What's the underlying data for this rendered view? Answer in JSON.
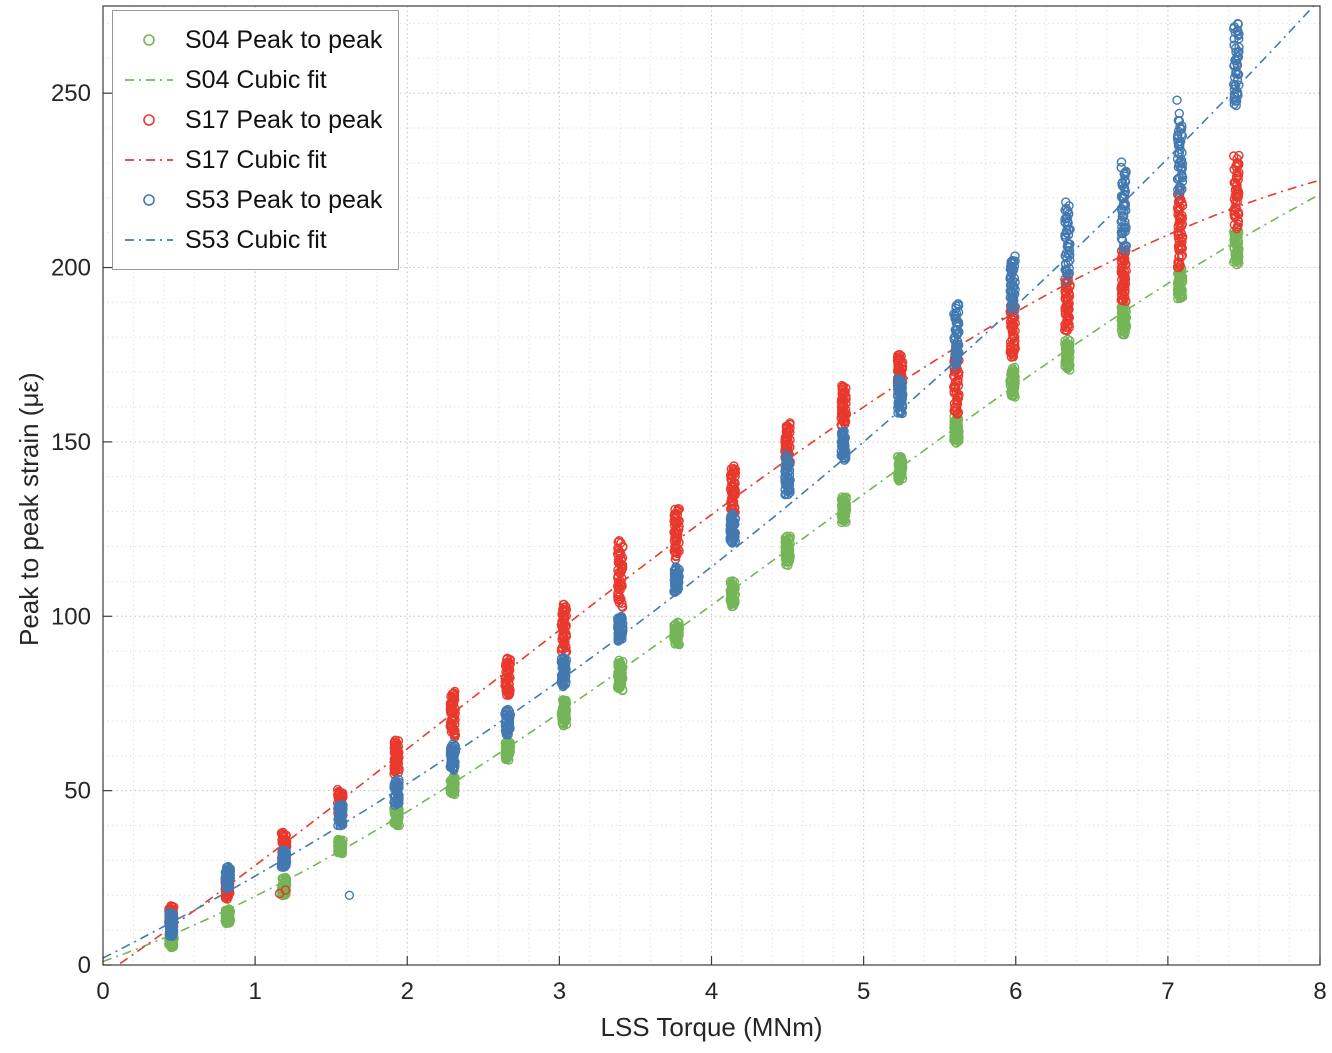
{
  "figure": {
    "xlabel": "LSS Torque (MNm)",
    "ylabel": "Peak to peak strain (με)"
  },
  "axes": {
    "xlim": [
      0,
      8
    ],
    "ylim": [
      0,
      275
    ],
    "x_ticks": [
      0,
      1,
      2,
      3,
      4,
      5,
      6,
      7,
      8
    ],
    "y_ticks": [
      0,
      50,
      100,
      150,
      200,
      250
    ],
    "x_minor_step": 0.2,
    "y_minor_step": 10,
    "grid": true,
    "minor_grid": true,
    "grid_color": "#c8c8c8",
    "minor_grid_color": "#e4e4e4",
    "axis_color": "#3b3b3b",
    "tick_label_color": "#262626"
  },
  "legend": {
    "position": "top-left",
    "entries": [
      {
        "label": "S04 Peak to peak",
        "type": "marker",
        "color": "#74b558"
      },
      {
        "label": "S04 Cubic fit",
        "type": "line",
        "color": "#74b558"
      },
      {
        "label": "S17 Peak to peak",
        "type": "marker",
        "color": "#e8392c"
      },
      {
        "label": "S17 Cubic fit",
        "type": "line",
        "color": "#e8392c"
      },
      {
        "label": "S53 Peak to peak",
        "type": "marker",
        "color": "#4379b0"
      },
      {
        "label": "S53 Cubic fit",
        "type": "line",
        "color": "#4379b0"
      }
    ]
  },
  "chart_data": {
    "type": "scatter",
    "xlabel": "LSS Torque (MNm)",
    "ylabel": "Peak to peak strain (με)",
    "xlim": [
      0,
      8
    ],
    "ylim": [
      0,
      275
    ],
    "note": "Each series is measured peak-to-peak strain clustered at discrete torque bins; clusters given as [torque_MNm, strain_min, strain_max]; cubic fits as polynomial coefficients [a0,a1,a2,a3] of y=a0+a1*x+a2*x^2+a3*x^3",
    "series": [
      {
        "name": "S04 Peak to peak",
        "color": "#74b558",
        "marker": "circle",
        "seed": 42,
        "points_per_cluster": 55,
        "clusters": [
          [
            0.45,
            5,
            9
          ],
          [
            0.82,
            12,
            16
          ],
          [
            1.19,
            20,
            25
          ],
          [
            1.56,
            32,
            36
          ],
          [
            1.93,
            40,
            45
          ],
          [
            2.3,
            49,
            54
          ],
          [
            2.66,
            59,
            64
          ],
          [
            3.03,
            69,
            76
          ],
          [
            3.4,
            79,
            87
          ],
          [
            3.77,
            92,
            98
          ],
          [
            4.14,
            103,
            110
          ],
          [
            4.5,
            115,
            123
          ],
          [
            4.87,
            127,
            134
          ],
          [
            5.24,
            139,
            146
          ],
          [
            5.61,
            150,
            157
          ],
          [
            5.98,
            163,
            171
          ],
          [
            6.34,
            171,
            179
          ],
          [
            6.71,
            181,
            189
          ],
          [
            7.08,
            191,
            200
          ],
          [
            7.45,
            201,
            211
          ]
        ],
        "outliers": [],
        "fit": {
          "name": "S04 Cubic fit",
          "coeffs": [
            1.0,
            15.41,
            3.556,
            -0.2556
          ],
          "style": "dash-dot"
        }
      },
      {
        "name": "S17 Peak to peak",
        "color": "#e8392c",
        "marker": "circle",
        "seed": 1337,
        "points_per_cluster": 55,
        "clusters": [
          [
            0.45,
            10,
            17
          ],
          [
            0.82,
            19,
            27
          ],
          [
            1.19,
            30,
            38
          ],
          [
            1.56,
            43,
            50
          ],
          [
            1.93,
            55,
            64
          ],
          [
            2.3,
            66,
            78
          ],
          [
            2.66,
            77,
            88
          ],
          [
            3.03,
            90,
            103
          ],
          [
            3.4,
            103,
            122
          ],
          [
            3.77,
            117,
            131
          ],
          [
            4.14,
            130,
            143
          ],
          [
            4.5,
            143,
            155
          ],
          [
            4.87,
            155,
            166
          ],
          [
            5.24,
            164,
            175
          ],
          [
            5.61,
            158,
            176
          ],
          [
            5.98,
            174,
            190
          ],
          [
            6.34,
            182,
            197
          ],
          [
            6.71,
            190,
            205
          ],
          [
            7.08,
            200,
            221
          ],
          [
            7.45,
            211,
            232
          ]
        ],
        "outliers": [
          [
            1.16,
            20.5
          ],
          [
            1.2,
            21.5
          ]
        ],
        "fit": {
          "name": "S17 Cubic fit",
          "coeffs": [
            -3.0,
            30.1,
            1.667,
            -0.2333
          ],
          "style": "dash-dot"
        }
      },
      {
        "name": "S53 Peak to peak",
        "color": "#4379b0",
        "marker": "circle",
        "seed": 2024,
        "points_per_cluster": 50,
        "clusters": [
          [
            0.45,
            8,
            15
          ],
          [
            0.82,
            22,
            28
          ],
          [
            1.19,
            28,
            33
          ],
          [
            1.56,
            40,
            46
          ],
          [
            1.93,
            46,
            53
          ],
          [
            2.3,
            56,
            63
          ],
          [
            2.66,
            66,
            73
          ],
          [
            3.03,
            80,
            88
          ],
          [
            3.4,
            93,
            100
          ],
          [
            3.77,
            107,
            114
          ],
          [
            4.14,
            121,
            129
          ],
          [
            4.5,
            135,
            146
          ],
          [
            4.87,
            145,
            153
          ],
          [
            5.24,
            158,
            168
          ],
          [
            5.61,
            172,
            189
          ],
          [
            5.98,
            188,
            203
          ],
          [
            6.34,
            197,
            218
          ],
          [
            6.71,
            205,
            229
          ],
          [
            7.08,
            221,
            243
          ],
          [
            7.45,
            246,
            270
          ]
        ],
        "outliers": [
          [
            1.62,
            20
          ],
          [
            7.06,
            248
          ]
        ],
        "fit": {
          "name": "S53 Cubic fit",
          "coeffs": [
            2.0,
            22.03,
            1.4653,
            0.00972
          ],
          "style": "dash-dot"
        }
      }
    ]
  }
}
